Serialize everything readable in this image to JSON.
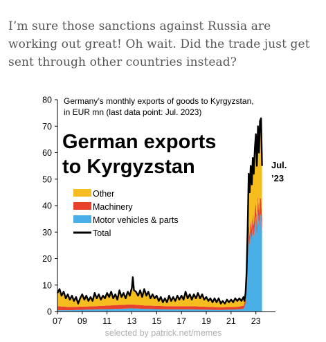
{
  "post": {
    "text": "I’m sure those sanctions against Russia are working out great! Oh wait. Did the trade just get sent through other countries instead?"
  },
  "watermark": "selected by patrick.net/memes",
  "colors": {
    "other": "#F5BE1E",
    "machinery": "#E8412C",
    "motor": "#4AAEE6",
    "total": "#000000"
  },
  "chart_data": {
    "type": "area",
    "stacked": true,
    "subtitle_lines": [
      "Germany’s monthly exports of goods to Kyrgyzstan,",
      "in EUR mn (last data point: Jul. 2023)"
    ],
    "title_lines": [
      "German exports",
      "to Kyrgyzstan"
    ],
    "annotation_lines": [
      "Jul.",
      "’23"
    ],
    "ylim": [
      0,
      80
    ],
    "yticks": [
      0,
      10,
      20,
      30,
      40,
      50,
      60,
      70,
      80
    ],
    "xlim": [
      2007.0,
      2024.58
    ],
    "xticks": [
      {
        "value": 2007,
        "label": "07"
      },
      {
        "value": 2009,
        "label": "09"
      },
      {
        "value": 2011,
        "label": "11"
      },
      {
        "value": 2013,
        "label": "13"
      },
      {
        "value": 2015,
        "label": "15"
      },
      {
        "value": 2017,
        "label": "17"
      },
      {
        "value": 2019,
        "label": "19"
      },
      {
        "value": 2021,
        "label": "21"
      },
      {
        "value": 2023,
        "label": "23"
      }
    ],
    "legend": {
      "placement": "center-left",
      "items": [
        {
          "label": "Other",
          "key": "other",
          "kind": "area"
        },
        {
          "label": "Machinery",
          "key": "machinery",
          "kind": "area"
        },
        {
          "label": "Motor vehicles & parts",
          "key": "motor",
          "kind": "area"
        },
        {
          "label": "Total",
          "key": "total",
          "kind": "line"
        }
      ]
    },
    "total_series": {
      "name": "Total",
      "points": [
        [
          2007.0,
          7.0
        ],
        [
          2007.17,
          8.5
        ],
        [
          2007.33,
          6.0
        ],
        [
          2007.5,
          7.5
        ],
        [
          2007.67,
          5.0
        ],
        [
          2007.83,
          6.5
        ],
        [
          2008.0,
          4.5
        ],
        [
          2008.17,
          6.0
        ],
        [
          2008.33,
          4.0
        ],
        [
          2008.5,
          5.5
        ],
        [
          2008.67,
          3.0
        ],
        [
          2008.83,
          5.0
        ],
        [
          2009.0,
          6.5
        ],
        [
          2009.17,
          4.5
        ],
        [
          2009.33,
          6.0
        ],
        [
          2009.5,
          4.0
        ],
        [
          2009.67,
          5.5
        ],
        [
          2009.83,
          4.0
        ],
        [
          2010.0,
          7.0
        ],
        [
          2010.17,
          5.0
        ],
        [
          2010.33,
          6.5
        ],
        [
          2010.5,
          4.5
        ],
        [
          2010.67,
          6.0
        ],
        [
          2010.83,
          5.0
        ],
        [
          2011.0,
          7.0
        ],
        [
          2011.17,
          5.5
        ],
        [
          2011.33,
          7.5
        ],
        [
          2011.5,
          5.0
        ],
        [
          2011.67,
          6.5
        ],
        [
          2011.83,
          4.5
        ],
        [
          2012.0,
          8.0
        ],
        [
          2012.17,
          5.5
        ],
        [
          2012.33,
          7.0
        ],
        [
          2012.5,
          5.0
        ],
        [
          2012.67,
          7.5
        ],
        [
          2012.83,
          6.0
        ],
        [
          2013.0,
          9.0
        ],
        [
          2013.08,
          13.0
        ],
        [
          2013.17,
          8.0
        ],
        [
          2013.33,
          7.5
        ],
        [
          2013.5,
          6.0
        ],
        [
          2013.67,
          8.0
        ],
        [
          2013.83,
          5.5
        ],
        [
          2014.0,
          8.5
        ],
        [
          2014.17,
          6.0
        ],
        [
          2014.33,
          7.5
        ],
        [
          2014.5,
          5.0
        ],
        [
          2014.67,
          6.5
        ],
        [
          2014.83,
          5.0
        ],
        [
          2015.0,
          6.0
        ],
        [
          2015.17,
          4.0
        ],
        [
          2015.33,
          5.5
        ],
        [
          2015.5,
          3.5
        ],
        [
          2015.67,
          5.0
        ],
        [
          2015.83,
          3.5
        ],
        [
          2016.0,
          6.0
        ],
        [
          2016.17,
          4.0
        ],
        [
          2016.33,
          5.5
        ],
        [
          2016.5,
          4.0
        ],
        [
          2016.67,
          6.0
        ],
        [
          2016.83,
          4.5
        ],
        [
          2017.0,
          6.0
        ],
        [
          2017.17,
          4.5
        ],
        [
          2017.33,
          7.5
        ],
        [
          2017.5,
          5.0
        ],
        [
          2017.67,
          6.5
        ],
        [
          2017.83,
          4.5
        ],
        [
          2018.0,
          6.5
        ],
        [
          2018.17,
          5.0
        ],
        [
          2018.33,
          7.0
        ],
        [
          2018.5,
          5.0
        ],
        [
          2018.67,
          6.5
        ],
        [
          2018.83,
          4.5
        ],
        [
          2019.0,
          5.5
        ],
        [
          2019.17,
          4.0
        ],
        [
          2019.33,
          5.0
        ],
        [
          2019.5,
          3.5
        ],
        [
          2019.67,
          5.0
        ],
        [
          2019.83,
          3.5
        ],
        [
          2020.0,
          5.0
        ],
        [
          2020.17,
          3.0
        ],
        [
          2020.33,
          4.0
        ],
        [
          2020.5,
          3.0
        ],
        [
          2020.67,
          4.5
        ],
        [
          2020.83,
          3.5
        ],
        [
          2021.0,
          4.5
        ],
        [
          2021.17,
          3.5
        ],
        [
          2021.33,
          5.0
        ],
        [
          2021.5,
          4.0
        ],
        [
          2021.67,
          5.0
        ],
        [
          2021.83,
          4.0
        ],
        [
          2022.0,
          5.5
        ],
        [
          2022.08,
          4.0
        ],
        [
          2022.17,
          7.0
        ],
        [
          2022.25,
          15.0
        ],
        [
          2022.33,
          30.0
        ],
        [
          2022.42,
          52.0
        ],
        [
          2022.5,
          45.0
        ],
        [
          2022.58,
          55.0
        ],
        [
          2022.67,
          48.0
        ],
        [
          2022.75,
          58.0
        ],
        [
          2022.83,
          52.0
        ],
        [
          2022.92,
          62.0
        ],
        [
          2023.0,
          67.0
        ],
        [
          2023.08,
          55.0
        ],
        [
          2023.17,
          70.0
        ],
        [
          2023.25,
          60.0
        ],
        [
          2023.33,
          72.0
        ],
        [
          2023.42,
          73.0
        ],
        [
          2023.5,
          55.0
        ]
      ]
    },
    "motor_series": {
      "name": "Motor vehicles & parts",
      "points": [
        [
          2007.0,
          0.5
        ],
        [
          2008.0,
          0.5
        ],
        [
          2010.0,
          0.8
        ],
        [
          2012.0,
          1.0
        ],
        [
          2013.0,
          1.2
        ],
        [
          2014.0,
          1.0
        ],
        [
          2016.0,
          0.8
        ],
        [
          2018.0,
          0.8
        ],
        [
          2020.0,
          0.6
        ],
        [
          2021.5,
          0.8
        ],
        [
          2022.0,
          1.0
        ],
        [
          2022.17,
          3.0
        ],
        [
          2022.25,
          8.0
        ],
        [
          2022.33,
          18.0
        ],
        [
          2022.42,
          30.0
        ],
        [
          2022.5,
          25.0
        ],
        [
          2022.58,
          30.0
        ],
        [
          2022.67,
          27.0
        ],
        [
          2022.75,
          32.0
        ],
        [
          2022.83,
          28.0
        ],
        [
          2022.92,
          33.0
        ],
        [
          2023.0,
          36.0
        ],
        [
          2023.08,
          28.0
        ],
        [
          2023.17,
          38.0
        ],
        [
          2023.25,
          32.0
        ],
        [
          2023.33,
          37.0
        ],
        [
          2023.42,
          36.0
        ],
        [
          2023.5,
          30.0
        ]
      ]
    },
    "machinery_series": {
      "name": "Machinery",
      "points": [
        [
          2007.0,
          1.5
        ],
        [
          2008.0,
          1.2
        ],
        [
          2010.0,
          1.2
        ],
        [
          2012.0,
          1.5
        ],
        [
          2013.0,
          1.5
        ],
        [
          2014.0,
          1.3
        ],
        [
          2016.0,
          1.2
        ],
        [
          2018.0,
          1.2
        ],
        [
          2020.0,
          1.0
        ],
        [
          2021.5,
          1.0
        ],
        [
          2022.0,
          1.2
        ],
        [
          2022.17,
          1.5
        ],
        [
          2022.25,
          2.0
        ],
        [
          2022.33,
          3.0
        ],
        [
          2022.42,
          4.0
        ],
        [
          2022.5,
          3.5
        ],
        [
          2022.58,
          4.5
        ],
        [
          2022.67,
          4.0
        ],
        [
          2022.75,
          5.0
        ],
        [
          2022.83,
          4.5
        ],
        [
          2022.92,
          5.0
        ],
        [
          2023.0,
          5.5
        ],
        [
          2023.08,
          4.5
        ],
        [
          2023.17,
          6.0
        ],
        [
          2023.25,
          5.0
        ],
        [
          2023.33,
          6.0
        ],
        [
          2023.42,
          6.5
        ],
        [
          2023.5,
          5.0
        ]
      ]
    }
  }
}
